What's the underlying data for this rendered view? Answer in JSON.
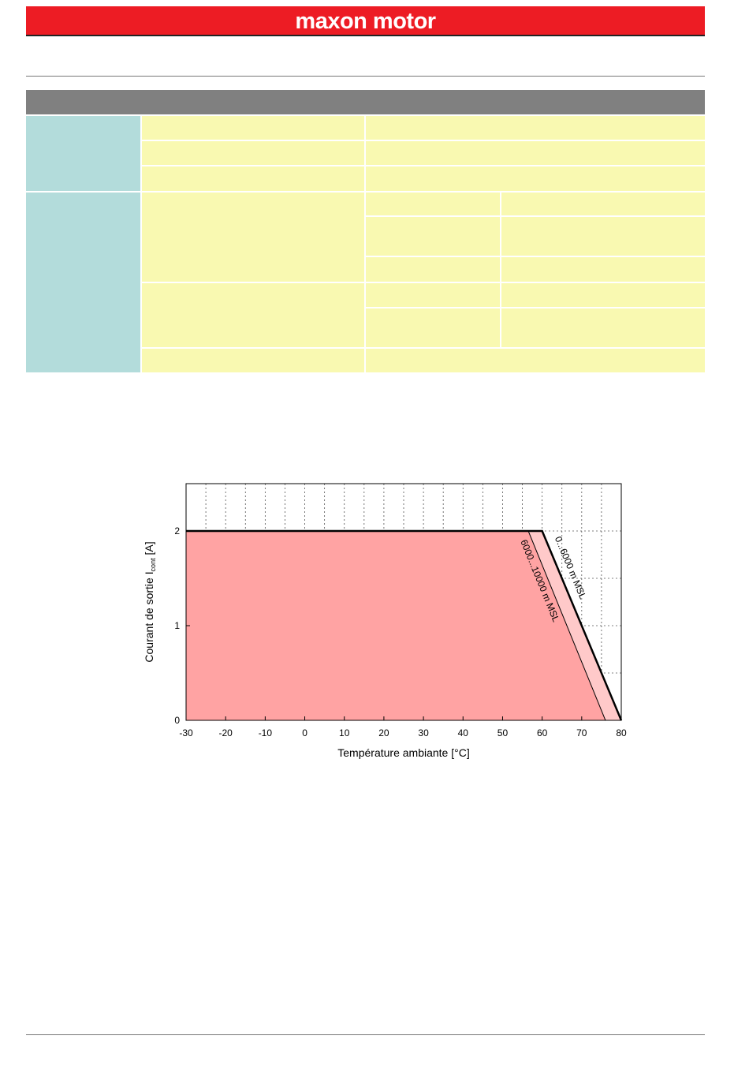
{
  "header": {
    "brand": "maxon motor",
    "brand_color": "#ed1c24"
  },
  "table": {
    "header_color": "#808080",
    "label_color": "#b3dcdb",
    "value_color": "#f9f9b1"
  },
  "chart_data": {
    "type": "area",
    "title": "",
    "xlabel": "Température ambiante [°C]",
    "ylabel_main": "Courant de sortie I",
    "ylabel_sub": "cont",
    "ylabel_unit": " [A]",
    "xlim": [
      -30,
      80
    ],
    "ylim": [
      0,
      2.5
    ],
    "x_ticks": [
      -30,
      -20,
      -10,
      0,
      10,
      20,
      30,
      40,
      50,
      60,
      70,
      80
    ],
    "y_ticks": [
      0,
      1,
      2
    ],
    "grid": true,
    "fill_color": "#ffa3a3",
    "fill_color_light": "#ffc9c9",
    "series": [
      {
        "name": "0...6000 m MSL",
        "x": [
          -30,
          60,
          80
        ],
        "y": [
          2,
          2,
          0
        ]
      },
      {
        "name": "6000...10000 m MSL",
        "x": [
          -30,
          56.5,
          76
        ],
        "y": [
          2,
          2,
          0
        ]
      }
    ]
  }
}
